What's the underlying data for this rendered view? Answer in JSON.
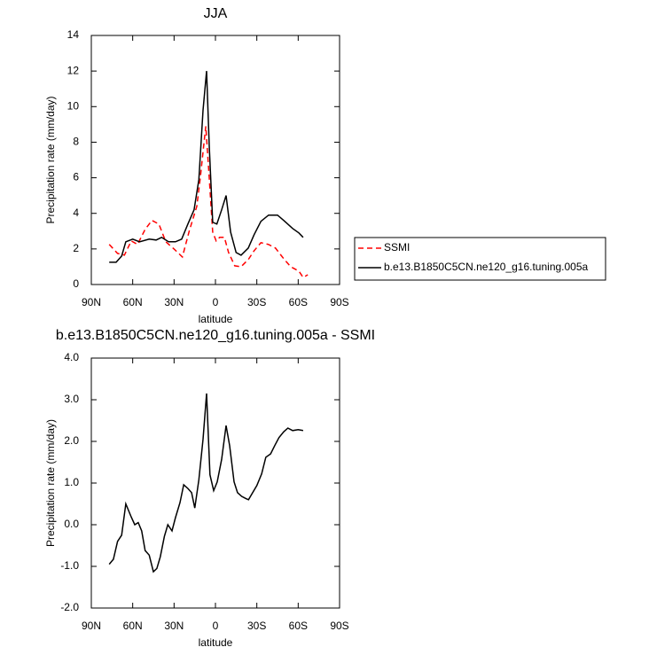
{
  "chart_data": [
    {
      "type": "line",
      "title": "JJA",
      "xlabel": "latitude",
      "ylabel": "Precipitation rate (mm/day)",
      "xlim": [
        90,
        -90
      ],
      "ylim": [
        0,
        14
      ],
      "xticks": [
        {
          "value": 90,
          "label": "90N"
        },
        {
          "value": 60,
          "label": "60N"
        },
        {
          "value": 30,
          "label": "30N"
        },
        0,
        {
          "value": -30,
          "label": "30S"
        },
        {
          "value": -60,
          "label": "60S"
        },
        {
          "value": -90,
          "label": "90S"
        }
      ],
      "yticks": [
        0,
        2,
        4,
        6,
        8,
        10,
        12,
        14
      ],
      "legend": "right",
      "series": [
        {
          "name": "SSMI",
          "color": "#ff0000",
          "dashed": true,
          "x": [
            77,
            71,
            66,
            61,
            56.5,
            51,
            46,
            41,
            36,
            30,
            24,
            19,
            13.5,
            11,
            7,
            4.5,
            2,
            -0.5,
            -3,
            -6.5,
            -9.5,
            -14,
            -18.6,
            -23.8,
            -28,
            -33,
            -38.5,
            -43.5,
            -49.5,
            -54.5,
            -60.5,
            -63.6,
            -67
          ],
          "values": [
            2.25,
            1.75,
            1.65,
            2.45,
            2.25,
            3.1,
            3.6,
            3.4,
            2.4,
            2.0,
            1.55,
            3.0,
            4.4,
            6.0,
            8.9,
            6.0,
            2.95,
            2.45,
            2.65,
            2.65,
            1.8,
            1.05,
            1.0,
            1.4,
            1.9,
            2.35,
            2.25,
            2.05,
            1.45,
            1.0,
            0.75,
            0.4,
            0.55
          ]
        },
        {
          "name": "b.e13.B1850C5CN.ne120_g16.tuning.005a",
          "color": "#000000",
          "dashed": false,
          "x": [
            77,
            72,
            68,
            65,
            60,
            55,
            48,
            43,
            39,
            34,
            29,
            24.5,
            20,
            15.5,
            12,
            9,
            6.4,
            4.5,
            2,
            -1,
            -4.5,
            -7.7,
            -11,
            -15,
            -18.6,
            -23.8,
            -28,
            -33,
            -38.5,
            -45,
            -49.5,
            -56,
            -60.5,
            -63.6
          ],
          "values": [
            1.25,
            1.25,
            1.6,
            2.4,
            2.55,
            2.4,
            2.55,
            2.5,
            2.65,
            2.4,
            2.4,
            2.55,
            3.4,
            4.2,
            5.9,
            9.8,
            12.0,
            7.8,
            3.5,
            3.4,
            4.2,
            5.0,
            2.95,
            1.8,
            1.65,
            2.05,
            2.8,
            3.55,
            3.9,
            3.9,
            3.6,
            3.15,
            2.9,
            2.65
          ]
        }
      ]
    },
    {
      "type": "line",
      "title": "b.e13.B1850C5CN.ne120_g16.tuning.005a - SSMI",
      "xlabel": "latitude",
      "ylabel": "Precipitation rate (mm/day)",
      "xlim": [
        90,
        -90
      ],
      "ylim": [
        -2,
        4
      ],
      "xticks": [
        {
          "value": 90,
          "label": "90N"
        },
        {
          "value": 60,
          "label": "60N"
        },
        {
          "value": 30,
          "label": "30N"
        },
        0,
        {
          "value": -30,
          "label": "30S"
        },
        {
          "value": -60,
          "label": "60S"
        },
        {
          "value": -90,
          "label": "90S"
        }
      ],
      "yticks": [
        {
          "value": -2,
          "label": "-2.0"
        },
        {
          "value": -1,
          "label": "-1.0"
        },
        {
          "value": 0,
          "label": "0.0"
        },
        {
          "value": 1,
          "label": "1.0"
        },
        {
          "value": 2,
          "label": "2.0"
        },
        {
          "value": 3,
          "label": "3.0"
        },
        {
          "value": 4,
          "label": "4.0"
        }
      ],
      "color": "#000000",
      "x": [
        77,
        74,
        71,
        68,
        65,
        61,
        58.5,
        56,
        53.5,
        51,
        48,
        45,
        42.5,
        40,
        37,
        34.5,
        31.5,
        29,
        25.7,
        23,
        20,
        17.3,
        15,
        12,
        9,
        6.4,
        4,
        1.3,
        -1.3,
        -4.5,
        -7.7,
        -10.3,
        -13.5,
        -16,
        -19,
        -22,
        -24,
        -27,
        -30,
        -33.5,
        -36.5,
        -40,
        -43,
        -46,
        -49.5,
        -52.5,
        -56,
        -60,
        -63.6
      ],
      "values": [
        -0.95,
        -0.83,
        -0.4,
        -0.25,
        0.5,
        0.18,
        0.0,
        0.05,
        -0.15,
        -0.62,
        -0.73,
        -1.13,
        -1.05,
        -0.77,
        -0.28,
        0.0,
        -0.15,
        0.17,
        0.53,
        0.96,
        0.87,
        0.77,
        0.4,
        1.08,
        2.05,
        3.15,
        1.2,
        0.82,
        1.03,
        1.57,
        2.38,
        1.9,
        1.03,
        0.77,
        0.68,
        0.63,
        0.6,
        0.77,
        0.94,
        1.22,
        1.62,
        1.7,
        1.9,
        2.09,
        2.23,
        2.32,
        2.26,
        2.28,
        2.26
      ]
    }
  ]
}
